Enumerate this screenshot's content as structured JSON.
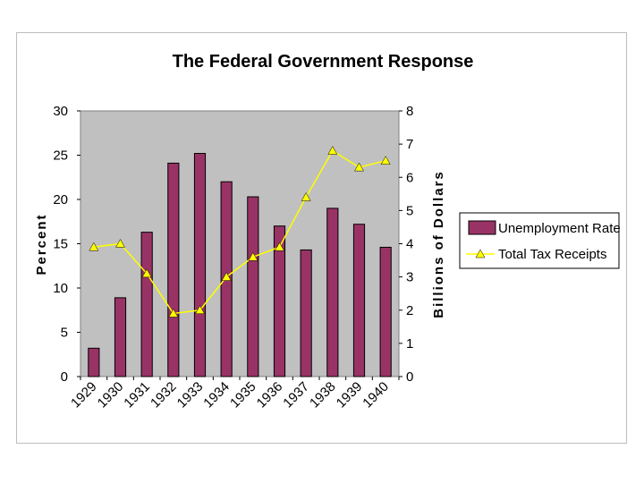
{
  "chart_data": {
    "type": "bar",
    "title": "The Federal Government Response",
    "categories": [
      "1929",
      "1930",
      "1931",
      "1932",
      "1933",
      "1934",
      "1935",
      "1936",
      "1937",
      "1938",
      "1939",
      "1940"
    ],
    "series": [
      {
        "name": "Unemployment Rate",
        "kind": "bar",
        "axis": "left",
        "color": "#993366",
        "values": [
          3.2,
          8.9,
          16.3,
          24.1,
          25.2,
          22.0,
          20.3,
          17.0,
          14.3,
          19.0,
          17.2,
          14.6
        ]
      },
      {
        "name": "Total Tax Receipts",
        "kind": "line",
        "axis": "right",
        "color": "#ffff00",
        "values": [
          3.9,
          4.0,
          3.1,
          1.9,
          2.0,
          3.0,
          3.6,
          3.9,
          5.4,
          6.8,
          6.3,
          6.5
        ]
      }
    ],
    "ylabel": "Percent",
    "y2label": "Billions of Dollars",
    "xlabel": "",
    "ylim": [
      0,
      30
    ],
    "y2lim": [
      0,
      8
    ],
    "yticks": [
      "0",
      "5",
      "10",
      "15",
      "20",
      "25",
      "30"
    ],
    "y2ticks": [
      "0",
      "1",
      "2",
      "3",
      "4",
      "5",
      "6",
      "7",
      "8"
    ],
    "plot_background": "#c0c0c0",
    "legend_position": "right"
  }
}
